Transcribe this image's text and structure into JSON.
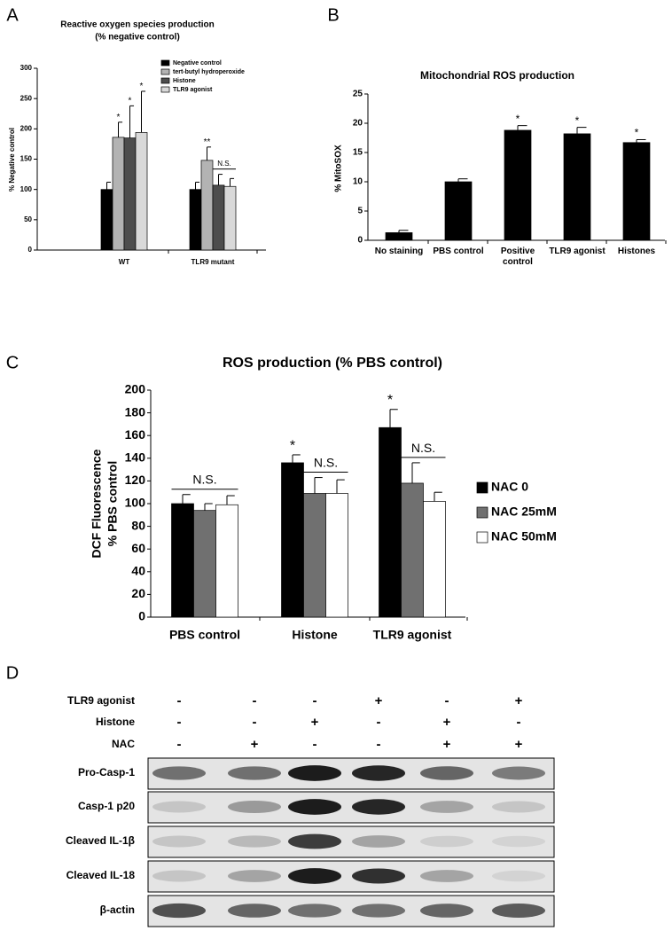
{
  "chart_data": [
    {
      "type": "bar",
      "panel_label": "A",
      "title": [
        "Reactive oxygen species production",
        "(% negative control)"
      ],
      "ylabel": "% Negative control",
      "categories": [
        "WT",
        "TLR9 mutant"
      ],
      "ylim": [
        0,
        300
      ],
      "yticks": [
        0,
        50,
        100,
        150,
        200,
        250,
        300
      ],
      "legend": "upper right",
      "series": [
        {
          "name": "Negative control",
          "color": "#000000",
          "values": [
            100,
            100
          ],
          "errors": [
            12,
            12
          ],
          "sig": [
            null,
            null
          ]
        },
        {
          "name": "tert-butyl hydroperoxide",
          "color": "#b3b3b3",
          "values": [
            186,
            148
          ],
          "errors": [
            25,
            22
          ],
          "sig": [
            "*",
            "**"
          ]
        },
        {
          "name": "Histone",
          "color": "#4d4d4d",
          "values": [
            185,
            107
          ],
          "errors": [
            53,
            18
          ],
          "sig": [
            "*",
            null
          ]
        },
        {
          "name": "TLR9 agonist",
          "color": "#d9d9d9",
          "values": [
            194,
            105
          ],
          "errors": [
            68,
            13
          ],
          "sig": [
            "*",
            null
          ]
        }
      ],
      "group_labels": [
        null,
        "N.S."
      ]
    },
    {
      "type": "bar",
      "panel_label": "B",
      "title": [
        "Mitochondrial ROS production"
      ],
      "ylabel": "% MitoSOX",
      "categories": [
        "No staining",
        "PBS control",
        "Positive control",
        "TLR9 agonist",
        "Histones"
      ],
      "ylim": [
        0,
        25
      ],
      "yticks": [
        0,
        5,
        10,
        15,
        20,
        25
      ],
      "color": "#000000",
      "values": [
        1.3,
        10,
        18.8,
        18.2,
        16.7
      ],
      "errors": [
        0.4,
        0.5,
        0.8,
        1.1,
        0.5
      ],
      "sig": [
        null,
        null,
        "*",
        "*",
        "*"
      ]
    },
    {
      "type": "bar",
      "panel_label": "C",
      "title": [
        "ROS production (% PBS control)"
      ],
      "ylabel": [
        "DCF Fluorescence",
        "% PBS control"
      ],
      "categories": [
        "PBS control",
        "Histone",
        "TLR9 agonist"
      ],
      "ylim": [
        0,
        200
      ],
      "yticks": [
        0,
        20,
        40,
        60,
        80,
        100,
        120,
        140,
        160,
        180,
        200
      ],
      "legend": "right",
      "series": [
        {
          "name": "NAC 0",
          "color": "#000000",
          "values": [
            100,
            136,
            167
          ],
          "errors": [
            8,
            7,
            16
          ],
          "sig": [
            null,
            "*",
            "*"
          ]
        },
        {
          "name": "NAC 25mM",
          "color": "#707070",
          "values": [
            94,
            109,
            118
          ],
          "errors": [
            6,
            14,
            18
          ],
          "sig": [
            null,
            null,
            null
          ]
        },
        {
          "name": "NAC 50mM",
          "color": "#ffffff",
          "values": [
            99,
            109,
            102
          ],
          "errors": [
            8,
            12,
            8
          ],
          "sig": [
            null,
            null,
            null
          ]
        }
      ],
      "group_labels": [
        "N.S.",
        "N.S.",
        "N.S."
      ]
    }
  ],
  "blot": {
    "panel_label": "D",
    "treatments": [
      {
        "name": "TLR9 agonist",
        "signs": [
          "-",
          "-",
          "-",
          "+",
          "-",
          "+"
        ]
      },
      {
        "name": "Histone",
        "signs": [
          "-",
          "-",
          "+",
          "-",
          "+",
          "-"
        ]
      },
      {
        "name": "NAC",
        "signs": [
          "-",
          "+",
          "-",
          "-",
          "+",
          "+"
        ]
      }
    ],
    "bands": [
      "Pro-Casp-1",
      "Casp-1 p20",
      "Cleaved IL-1β",
      "Cleaved IL-18",
      "β-actin"
    ]
  }
}
